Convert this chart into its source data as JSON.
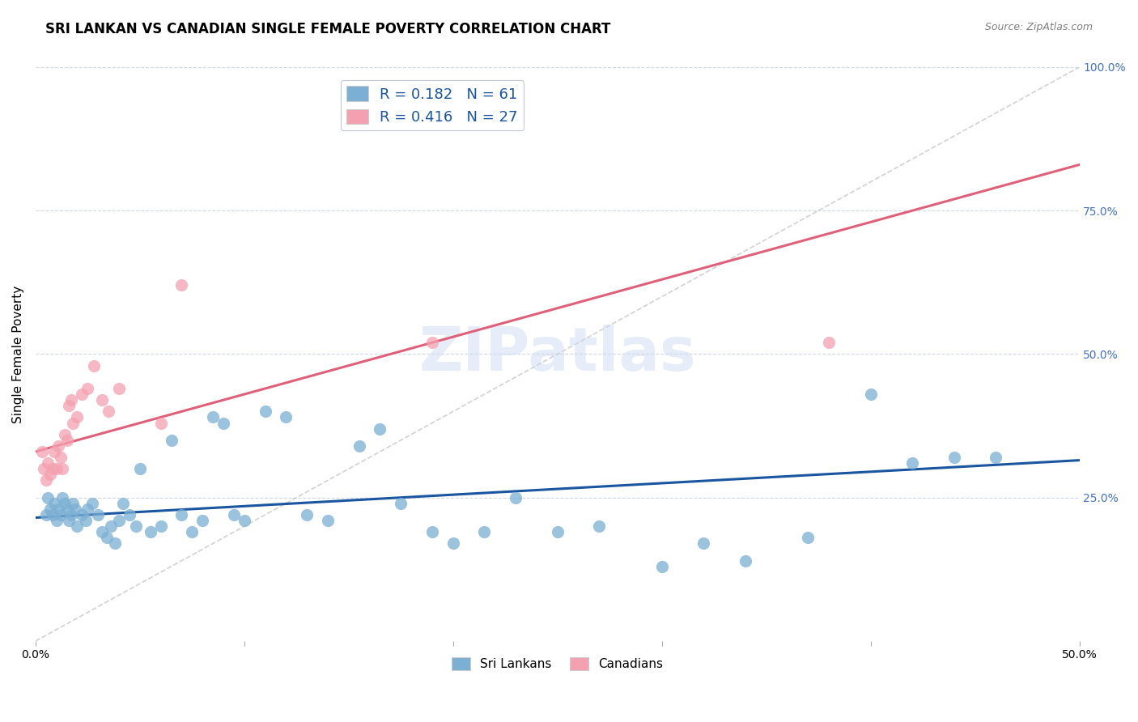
{
  "title": "SRI LANKAN VS CANADIAN SINGLE FEMALE POVERTY CORRELATION CHART",
  "source": "Source: ZipAtlas.com",
  "ylabel": "Single Female Poverty",
  "xlim": [
    0.0,
    0.5
  ],
  "ylim": [
    0.0,
    1.0
  ],
  "sri_lankans_R": "0.182",
  "sri_lankans_N": "61",
  "canadians_R": "0.416",
  "canadians_N": "27",
  "sri_lankans_color": "#7bafd4",
  "canadians_color": "#f4a0b0",
  "sri_lankans_line_color": "#1a56a0",
  "canadians_line_color": "#e0607a",
  "diagonal_line_color": "#c0c0c0",
  "background_color": "#ffffff",
  "grid_color": "#d0d8e8",
  "watermark": "ZIPatlas",
  "watermark_color": "#c8d8f0",
  "legend_text_color": "#1a56a0",
  "sri_lankans_x": [
    0.005,
    0.006,
    0.007,
    0.008,
    0.009,
    0.01,
    0.011,
    0.012,
    0.013,
    0.014,
    0.015,
    0.016,
    0.017,
    0.018,
    0.019,
    0.02,
    0.022,
    0.024,
    0.025,
    0.027,
    0.03,
    0.032,
    0.034,
    0.036,
    0.038,
    0.04,
    0.042,
    0.045,
    0.048,
    0.05,
    0.055,
    0.06,
    0.065,
    0.07,
    0.075,
    0.08,
    0.085,
    0.09,
    0.095,
    0.1,
    0.11,
    0.12,
    0.13,
    0.14,
    0.155,
    0.165,
    0.175,
    0.19,
    0.2,
    0.215,
    0.23,
    0.25,
    0.27,
    0.3,
    0.32,
    0.34,
    0.37,
    0.4,
    0.42,
    0.44,
    0.46
  ],
  "sri_lankans_y": [
    0.22,
    0.25,
    0.23,
    0.22,
    0.24,
    0.21,
    0.23,
    0.22,
    0.25,
    0.24,
    0.23,
    0.21,
    0.22,
    0.24,
    0.23,
    0.2,
    0.22,
    0.21,
    0.23,
    0.24,
    0.22,
    0.19,
    0.18,
    0.2,
    0.17,
    0.21,
    0.24,
    0.22,
    0.2,
    0.3,
    0.19,
    0.2,
    0.35,
    0.22,
    0.19,
    0.21,
    0.39,
    0.38,
    0.22,
    0.21,
    0.4,
    0.39,
    0.22,
    0.21,
    0.34,
    0.37,
    0.24,
    0.19,
    0.17,
    0.19,
    0.25,
    0.19,
    0.2,
    0.13,
    0.17,
    0.14,
    0.18,
    0.43,
    0.31,
    0.32,
    0.32
  ],
  "canadians_x": [
    0.003,
    0.004,
    0.005,
    0.006,
    0.007,
    0.008,
    0.009,
    0.01,
    0.011,
    0.012,
    0.013,
    0.014,
    0.015,
    0.016,
    0.017,
    0.018,
    0.02,
    0.022,
    0.025,
    0.028,
    0.032,
    0.035,
    0.04,
    0.06,
    0.07,
    0.19,
    0.38
  ],
  "canadians_y": [
    0.33,
    0.3,
    0.28,
    0.31,
    0.29,
    0.3,
    0.33,
    0.3,
    0.34,
    0.32,
    0.3,
    0.36,
    0.35,
    0.41,
    0.42,
    0.38,
    0.39,
    0.43,
    0.44,
    0.48,
    0.42,
    0.4,
    0.44,
    0.38,
    0.62,
    0.52,
    0.52
  ],
  "sri_lankans_trend_x": [
    0.0,
    0.5
  ],
  "sri_lankans_trend_y": [
    0.215,
    0.315
  ],
  "canadians_trend_x": [
    0.0,
    0.5
  ],
  "canadians_trend_y": [
    0.33,
    0.83
  ]
}
